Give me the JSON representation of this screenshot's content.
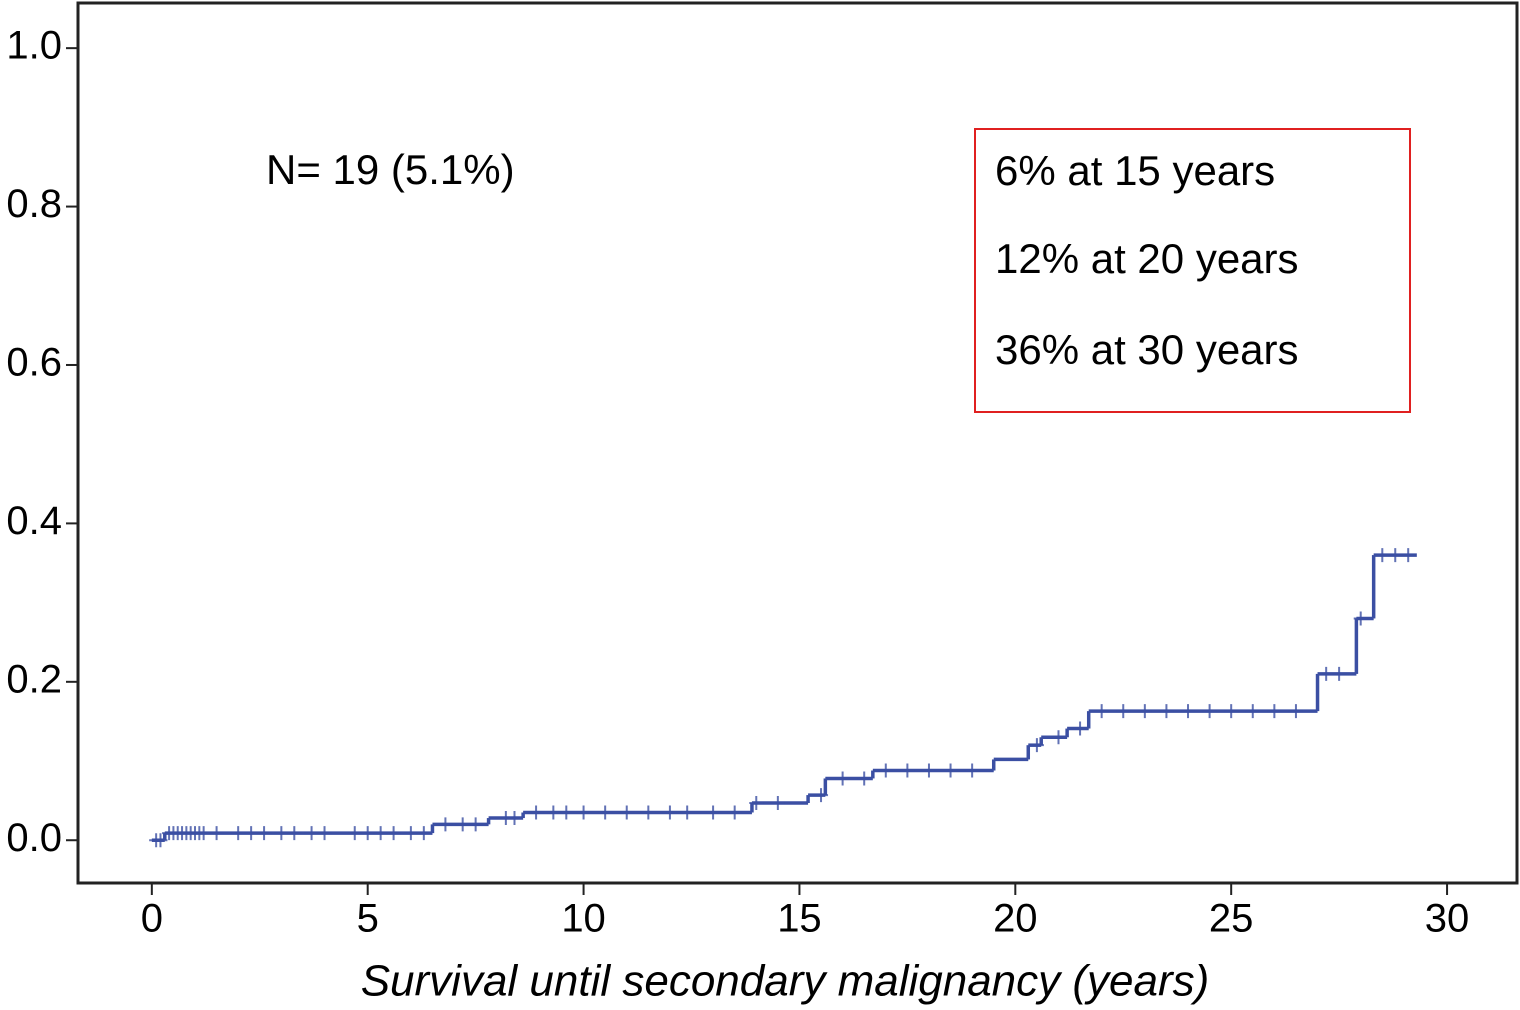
{
  "chart_data": {
    "type": "step",
    "x_label": "Survival until secondary malignancy (years)",
    "annotation": "N= 19 (5.1%)",
    "box_lines": [
      "6% at 15 years",
      "12% at 20 years",
      "36% at 30 years"
    ],
    "color": "#3b4fa3",
    "box_color": "#e02020",
    "x": [
      0,
      0.3,
      6.5,
      7.8,
      8.6,
      13.9,
      15.2,
      15.6,
      16.7,
      19.5,
      20.3,
      20.6,
      21.2,
      21.7,
      27.0,
      27.9,
      28.3,
      29.3
    ],
    "y": [
      0,
      0.009,
      0.02,
      0.028,
      0.035,
      0.047,
      0.057,
      0.078,
      0.088,
      0.102,
      0.12,
      0.13,
      0.141,
      0.163,
      0.21,
      0.28,
      0.36,
      0.36
    ],
    "censored_x": [
      0.1,
      0.2,
      0.4,
      0.5,
      0.6,
      0.7,
      0.8,
      0.9,
      1.0,
      1.1,
      1.2,
      1.5,
      2.0,
      2.3,
      2.6,
      3.0,
      3.3,
      3.7,
      4.0,
      4.7,
      5.0,
      5.3,
      5.6,
      6.0,
      6.3,
      6.8,
      7.2,
      7.5,
      8.2,
      8.4,
      8.9,
      9.3,
      9.6,
      10.0,
      10.5,
      11.0,
      11.5,
      12.0,
      12.4,
      13.0,
      13.5,
      14.0,
      14.5,
      15.5,
      16.0,
      16.5,
      17.0,
      17.5,
      18.0,
      18.5,
      19.0,
      20.5,
      21.0,
      21.5,
      22.0,
      22.5,
      23.0,
      23.5,
      24.0,
      24.5,
      25.0,
      25.5,
      26.0,
      26.5,
      27.2,
      27.5,
      28.0,
      28.5,
      28.8,
      29.1
    ],
    "xlim": [
      -1.71,
      31.62
    ],
    "ylim": [
      -0.054,
      1.057
    ],
    "xticks": [
      0,
      5,
      10,
      15,
      20,
      25,
      30
    ],
    "yticks": [
      {
        "value": 0,
        "label": "0.0"
      },
      0.2,
      0.4,
      0.6,
      0.8,
      {
        "value": 1,
        "label": "1.0"
      }
    ]
  }
}
